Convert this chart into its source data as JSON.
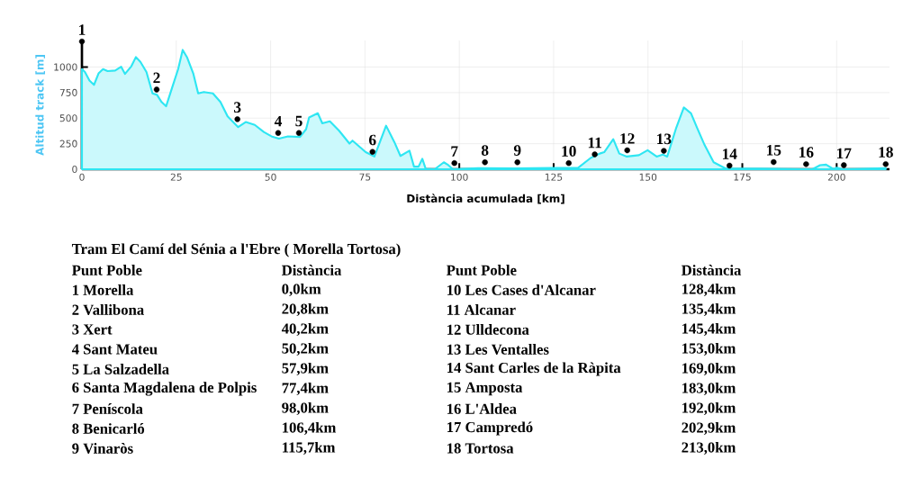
{
  "chart_data": {
    "type": "area",
    "xlabel": "Distància acumulada [km]",
    "ylabel": "Altitud track [m]",
    "xlim": [
      0,
      214
    ],
    "ylim": [
      0,
      1260
    ],
    "xticks": [
      0,
      25,
      50,
      75,
      100,
      125,
      150,
      175,
      200
    ],
    "yticks": [
      0,
      250,
      500,
      750,
      1000
    ],
    "grid": true,
    "series": [
      {
        "color": "#2ee6f2",
        "x": [
          0,
          0.8,
          2,
          3.2,
          4.4,
          5.6,
          6.8,
          8.8,
          10.4,
          11.4,
          13.1,
          14.3,
          15.5,
          17.1,
          18.7,
          19.9,
          21.1,
          22.3,
          23.9,
          25.5,
          26.7,
          27.9,
          29.5,
          30.8,
          32.3,
          34.7,
          36.7,
          38.6,
          41.4,
          43.4,
          45.8,
          48.2,
          50.2,
          52.2,
          54.6,
          57.8,
          59.4,
          60.2,
          62.5,
          63.7,
          65.7,
          68.1,
          70.9,
          71.7,
          75.2,
          77.5,
          80.6,
          82.8,
          84.4,
          86.8,
          88,
          89.2,
          90.2,
          91.1,
          93.5,
          95.9,
          97.1,
          98.3,
          105,
          115,
          125,
          131.5,
          134.8,
          137.2,
          138.4,
          140.8,
          142.4,
          144.4,
          147.6,
          149.9,
          152.3,
          153.9,
          155.1,
          157.5,
          159.5,
          161.4,
          163,
          165,
          167.4,
          170.6,
          180,
          193.6,
          195.6,
          197.2,
          199.2,
          200,
          201.6,
          213
        ],
        "values": [
          980,
          952,
          868,
          826,
          938,
          980,
          960,
          966,
          1003,
          933,
          1008,
          1098,
          1050,
          952,
          742,
          728,
          658,
          616,
          798,
          980,
          1168,
          1092,
          938,
          742,
          756,
          742,
          658,
          518,
          412,
          462,
          434,
          364,
          322,
          300,
          322,
          316,
          392,
          506,
          548,
          449,
          469,
          379,
          251,
          280,
          167,
          124,
          426,
          265,
          130,
          181,
          25,
          25,
          102,
          3,
          0,
          68,
          40,
          0,
          10,
          8,
          12,
          15,
          110,
          153,
          167,
          294,
          153,
          124,
          138,
          186,
          124,
          144,
          124,
          407,
          604,
          548,
          407,
          237,
          68,
          6,
          5,
          0,
          40,
          45,
          0,
          15,
          0,
          10
        ]
      },
      {
        "type": "scatter",
        "color": "#000000",
        "marker": "circle",
        "x": [
          0,
          19.8,
          41.2,
          52,
          57.5,
          77,
          98.7,
          106.8,
          115.4,
          129,
          135.9,
          144.5,
          154.2,
          171.6,
          183.3,
          191.9,
          201.9,
          213
        ],
        "values": [
          1250,
          780,
          490,
          355,
          355,
          170,
          60,
          68,
          68,
          60,
          145,
          185,
          180,
          35,
          70,
          50,
          40,
          50
        ]
      }
    ],
    "annotations": [
      "Tram El Camí del Sénia a l'Ebre ( Morella Tortosa)",
      "Punt Poble",
      "Distància",
      "1 Morella",
      "0,0km",
      "2 Vallibona",
      "20,8km",
      "3 Xert",
      "40,2km",
      "4 Sant Mateu",
      "50,2km",
      "5 La Salzadella",
      "57,9km",
      "6 Santa Magdalena de Polpis",
      "77,4km",
      "7 Peníscola",
      "98,0km",
      "8 Benicarló",
      "106,4km",
      "9 Vinaròs",
      "115,7km",
      "Punt Poble",
      "Distància",
      "10 Les Cases d'Alcanar",
      "128,4km",
      "11 Alcanar",
      "135,4km",
      "12 Ulldecona",
      "145,4km",
      "13 Les Ventalles",
      "153,0km",
      "14 Sant Carles de la Ràpita",
      "169,0km",
      "15 Amposta",
      "183,0km",
      "16 L'Aldea",
      "192,0km",
      "17 Campredó",
      "202,9km",
      "18 Tortosa",
      "213,0km",
      {
        "text": "1",
        "x": 0,
        "y": 1250
      },
      {
        "text": "2",
        "x": 19.8,
        "y": 780
      },
      {
        "text": "3",
        "x": 41.2,
        "y": 490
      },
      {
        "text": "4",
        "x": 52,
        "y": 355
      },
      {
        "text": "5",
        "x": 57.5,
        "y": 355
      },
      {
        "text": "6",
        "x": 77,
        "y": 170
      },
      {
        "text": "7",
        "x": 98.7,
        "y": 60
      },
      {
        "text": "8",
        "x": 106.8,
        "y": 68
      },
      {
        "text": "9",
        "x": 115.4,
        "y": 68
      },
      {
        "text": "10",
        "x": 129,
        "y": 60
      },
      {
        "text": "11",
        "x": 135.9,
        "y": 145
      },
      {
        "text": "12",
        "x": 144.5,
        "y": 185
      },
      {
        "text": "13",
        "x": 154.2,
        "y": 180
      },
      {
        "text": "14",
        "x": 171.6,
        "y": 35
      },
      {
        "text": "15",
        "x": 183.3,
        "y": 70
      },
      {
        "text": "16",
        "x": 191.9,
        "y": 50
      },
      {
        "text": "17",
        "x": 201.9,
        "y": 40
      },
      {
        "text": "18",
        "x": 213,
        "y": 50
      }
    ]
  }
}
